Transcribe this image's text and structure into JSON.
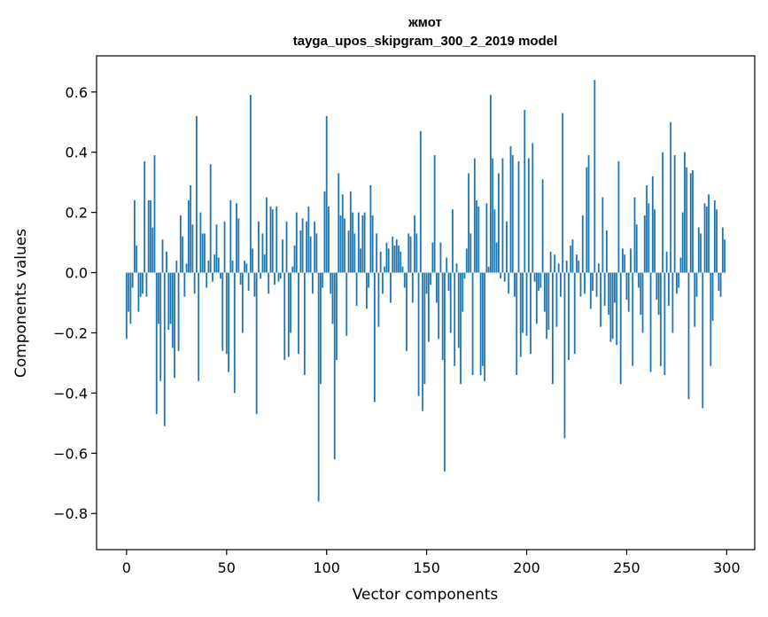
{
  "chart_data": {
    "type": "bar",
    "title": "жмот",
    "subtitle": "tayga_upos_skipgram_300_2_2019 model",
    "xlabel": "Vector components",
    "ylabel": "Components values",
    "xlim": [
      -15,
      314
    ],
    "ylim": [
      -0.92,
      0.72
    ],
    "xticks": [
      0,
      50,
      100,
      150,
      200,
      250,
      300
    ],
    "yticks": [
      -0.8,
      -0.6,
      -0.4,
      -0.2,
      0.0,
      0.2,
      0.4,
      0.6
    ],
    "ytick_labels": [
      "−0.8",
      "−0.6",
      "−0.4",
      "−0.2",
      "0.0",
      "0.2",
      "0.4",
      "0.6"
    ],
    "bar_color": "#1f77b4",
    "values": [
      -0.22,
      -0.13,
      -0.17,
      -0.05,
      0.24,
      0.09,
      -0.13,
      -0.08,
      -0.07,
      0.37,
      -0.08,
      0.24,
      0.24,
      0.15,
      0.39,
      -0.47,
      -0.17,
      -0.36,
      0.11,
      -0.51,
      0.07,
      -0.19,
      -0.17,
      -0.25,
      -0.35,
      0.04,
      -0.26,
      0.19,
      0.12,
      -0.08,
      0.03,
      0.24,
      0.29,
      0.16,
      -0.07,
      0.52,
      -0.36,
      0.2,
      0.13,
      0.13,
      -0.05,
      0.04,
      0.36,
      -0.03,
      0.06,
      0.16,
      0.05,
      -0.02,
      -0.26,
      0.17,
      -0.27,
      -0.33,
      0.24,
      0.04,
      -0.4,
      0.23,
      0.18,
      -0.04,
      -0.2,
      0.04,
      0.03,
      -0.06,
      0.59,
      0.08,
      -0.08,
      -0.47,
      0.17,
      -0.02,
      0.13,
      0.06,
      0.25,
      -0.07,
      0.22,
      0.21,
      -0.04,
      0.22,
      -0.03,
      -0.02,
      0.11,
      -0.29,
      0.17,
      -0.28,
      -0.2,
      0.02,
      0.09,
      0.2,
      -0.27,
      0.14,
      0.18,
      -0.34,
      0.17,
      0.22,
      0.12,
      -0.07,
      0.17,
      0.13,
      -0.76,
      -0.37,
      -0.05,
      0.27,
      0.52,
      0.22,
      -0.07,
      -0.17,
      -0.62,
      -0.29,
      0.33,
      0.19,
      0.26,
      0.18,
      -0.21,
      0.14,
      0.27,
      0.2,
      0.13,
      -0.11,
      0.2,
      0.08,
      0.19,
      0.2,
      -0.12,
      -0.05,
      0.29,
      0.19,
      -0.43,
      0.13,
      -0.18,
      0.07,
      -0.07,
      0.02,
      0.1,
      0.08,
      -0.1,
      0.12,
      0.09,
      0.11,
      0.09,
      0.07,
      0.02,
      -0.05,
      -0.26,
      0.13,
      0.12,
      -0.1,
      0.19,
      0.13,
      -0.41,
      0.47,
      -0.46,
      -0.37,
      -0.07,
      -0.23,
      -0.04,
      0.1,
      0.39,
      -0.1,
      -0.22,
      0.1,
      -0.29,
      -0.66,
      0.05,
      -0.06,
      -0.2,
      0.21,
      -0.31,
      0.03,
      -0.25,
      -0.37,
      -0.13,
      -0.02,
      0.08,
      0.33,
      0.13,
      -0.34,
      0.38,
      0.24,
      0.22,
      -0.34,
      -0.31,
      -0.36,
      0.23,
      0.02,
      0.59,
      0.38,
      0.21,
      0.1,
      0.33,
      -0.02,
      0.38,
      -0.03,
      0.17,
      -0.07,
      0.42,
      0.39,
      -0.08,
      -0.34,
      0.37,
      -0.28,
      -0.2,
      0.54,
      -0.21,
      0.38,
      -0.27,
      0.43,
      -0.03,
      -0.17,
      -0.06,
      -0.05,
      0.31,
      -0.13,
      -0.22,
      -0.19,
      0.07,
      -0.37,
      0.06,
      -0.18,
      0.03,
      -0.08,
      0.53,
      -0.55,
      0.04,
      -0.29,
      0.09,
      0.11,
      -0.27,
      0.06,
      0.04,
      -0.08,
      0.19,
      -0.07,
      0.35,
      0.39,
      -0.12,
      -0.06,
      0.64,
      -0.08,
      0.03,
      -0.18,
      0.25,
      -0.11,
      0.14,
      -0.14,
      -0.23,
      -0.22,
      -0.1,
      -0.24,
      0.37,
      -0.37,
      0.08,
      0.06,
      -0.09,
      -0.13,
      0.08,
      -0.31,
      0.25,
      0.16,
      -0.05,
      -0.14,
      -0.2,
      0.19,
      0.29,
      0.23,
      -0.33,
      0.32,
      0.21,
      -0.09,
      -0.14,
      -0.31,
      0.4,
      -0.34,
      0.07,
      -0.11,
      0.5,
      -0.2,
      0.39,
      -0.07,
      -0.05,
      0.05,
      0.2,
      0.4,
      0.35,
      -0.42,
      0.33,
      0.34,
      -0.18,
      -0.08,
      0.15,
      0.13,
      -0.45,
      0.23,
      0.22,
      0.26,
      -0.31,
      -0.16,
      0.24,
      0.21,
      -0.06,
      -0.08,
      0.15,
      0.11
    ],
    "total_bars": 300
  }
}
